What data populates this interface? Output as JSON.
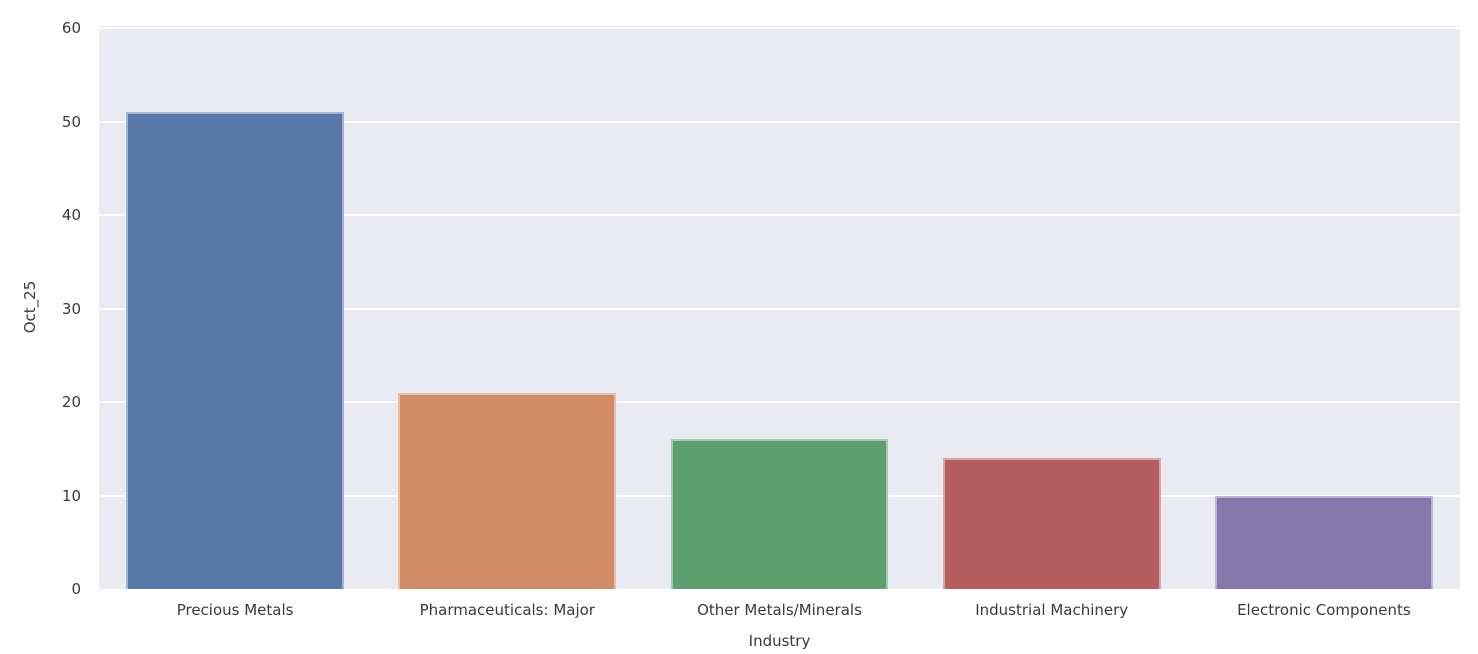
{
  "chart_data": {
    "type": "bar",
    "title": "",
    "categories": [
      "Precious Metals",
      "Pharmaceuticals: Major",
      "Other Metals/Minerals",
      "Industrial Machinery",
      "Electronic Components"
    ],
    "values": [
      51,
      21,
      16,
      14,
      10
    ],
    "xlabel": "Industry",
    "ylabel": "Oct_25",
    "yticks": [
      0,
      10,
      20,
      30,
      40,
      50,
      60
    ],
    "ylim": [
      0,
      60
    ],
    "grid": true,
    "legend": false,
    "bar_width_fraction": 0.8,
    "bar_colors": [
      "#5878a8",
      "#d18b65",
      "#5f9e6f",
      "#b55d60",
      "#8578ab"
    ]
  },
  "colors": {
    "figure_background": "#ffffff",
    "plot_background": "#eaeaf2",
    "gridline": "#ffffff",
    "text": "#3a3a3a"
  }
}
